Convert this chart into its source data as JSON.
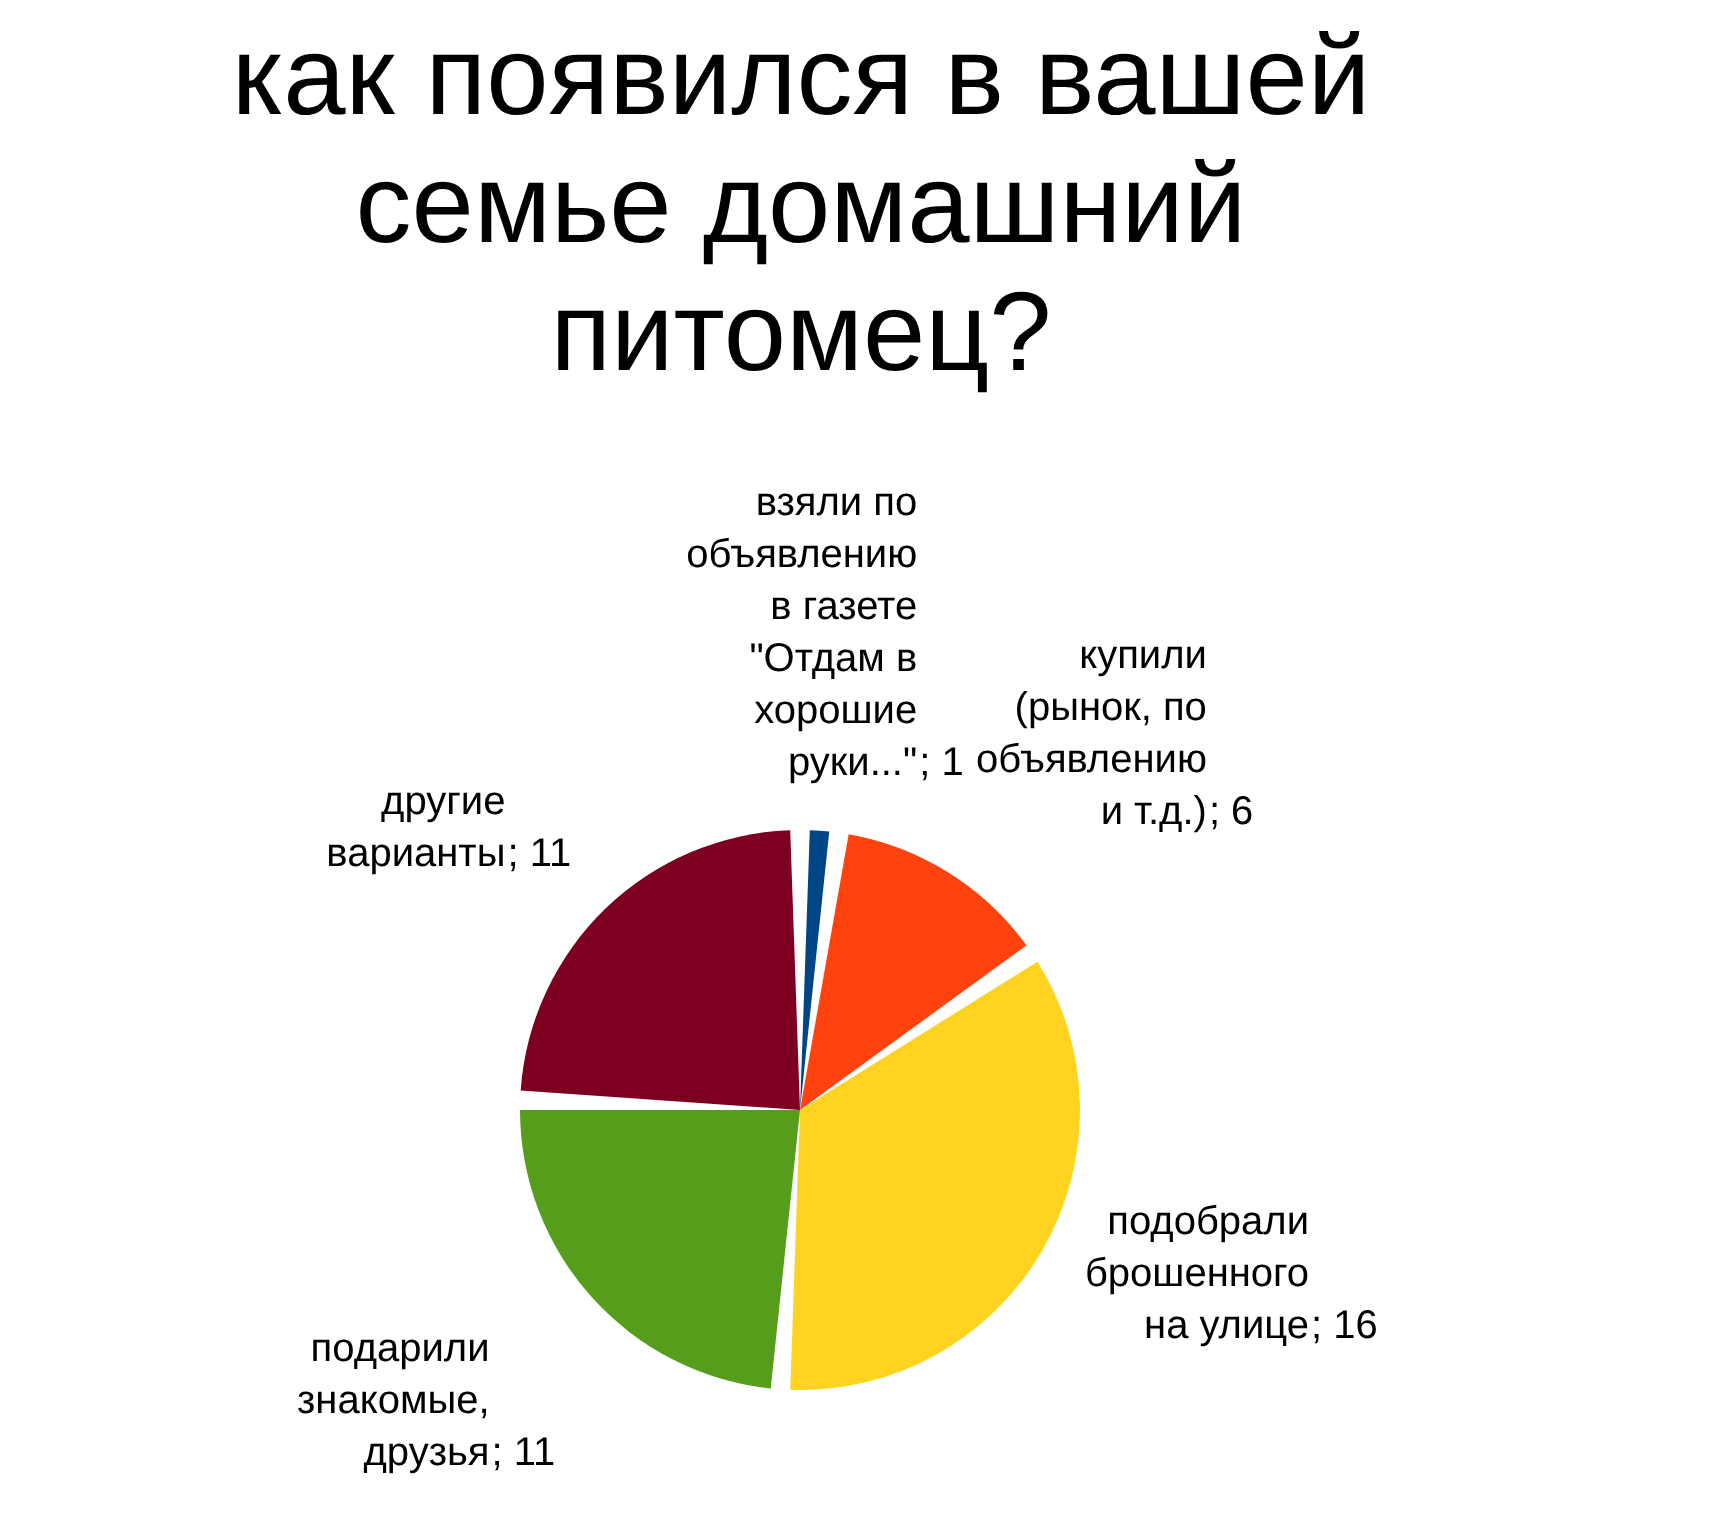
{
  "chart_data": {
    "type": "pie",
    "title": "как появился в вашей семье домашний питомец?",
    "categories": [
      "взяли по объявлению в газете \"Отдам в хорошие руки...\"",
      "купили (рынок, по объявлению и т.д.)",
      "подобрали брошенного на улице",
      "подарили знакомые, друзья",
      "другие варианты"
    ],
    "values": [
      1,
      6,
      16,
      11,
      11
    ],
    "value_labels": [
      "; 1",
      "; 6",
      "; 16",
      "; 11",
      "; 11"
    ],
    "colors": [
      "#004586",
      "#ff420e",
      "#ffd320",
      "#579d1c",
      "#7e0021"
    ]
  }
}
